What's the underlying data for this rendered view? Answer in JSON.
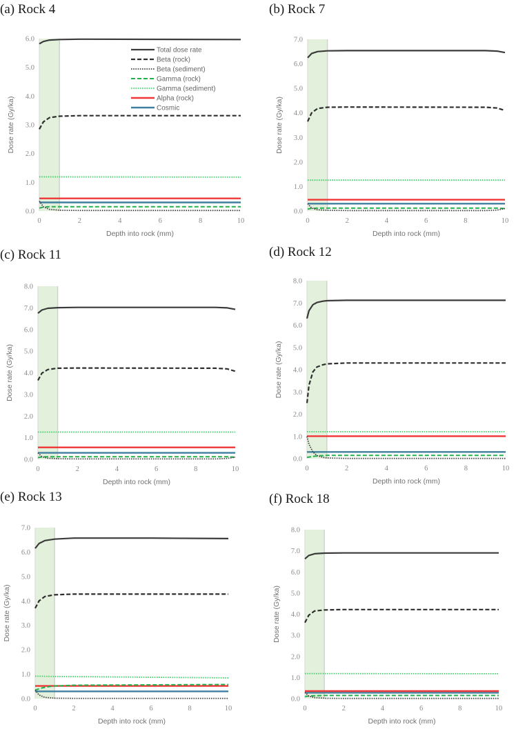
{
  "figure": {
    "legend": {
      "placement": "top-right of panel (a)",
      "entries": [
        {
          "key": "total",
          "label": "Total dose rate"
        },
        {
          "key": "beta_rock",
          "label": "Beta (rock)"
        },
        {
          "key": "beta_sed",
          "label": "Beta (sediment)"
        },
        {
          "key": "gamma_rock",
          "label": "Gamma (rock)"
        },
        {
          "key": "gamma_sed",
          "label": "Gamma (sediment)"
        },
        {
          "key": "alpha_rock",
          "label": "Alpha (rock)"
        },
        {
          "key": "cosmic",
          "label": "Cosmic"
        }
      ]
    },
    "series_styles": {
      "total": {
        "color": "#3a3a3a",
        "dash": "solid"
      },
      "beta_rock": {
        "color": "#2e2e2e",
        "dash": "dashed"
      },
      "beta_sed": {
        "color": "#444444",
        "dash": "dotted"
      },
      "gamma_rock": {
        "color": "#22b04b",
        "dash": "dashed"
      },
      "gamma_sed": {
        "color": "#3fcf6a",
        "dash": "dotted"
      },
      "alpha_rock": {
        "color": "#ef3535",
        "dash": "solid"
      },
      "cosmic": {
        "color": "#3f7f9f",
        "dash": "solid"
      }
    },
    "shaded_region": {
      "x_from": 0,
      "x_to": 1,
      "color": "#e3f1dc"
    }
  },
  "chart_data": [
    {
      "type": "line",
      "title": "(a) Rock 4",
      "xlabel": "Depth into rock (mm)",
      "ylabel": "Dose rate (Gy/ka)",
      "xlim": [
        0,
        10
      ],
      "ylim": [
        0,
        6
      ],
      "xticks": [
        "0",
        "2",
        "4",
        "6",
        "8",
        "10"
      ],
      "yticks": [
        "0.0",
        "1.0",
        "2.0",
        "3.0",
        "4.0",
        "5.0",
        "6.0"
      ],
      "show_legend": true,
      "series": [
        {
          "key": "total",
          "x": [
            0,
            0.2,
            0.5,
            1,
            2,
            10
          ],
          "y": [
            5.82,
            5.9,
            5.95,
            5.97,
            5.98,
            5.97
          ]
        },
        {
          "key": "beta_rock",
          "x": [
            0,
            0.2,
            0.5,
            1,
            2,
            10
          ],
          "y": [
            2.85,
            3.1,
            3.25,
            3.3,
            3.32,
            3.32
          ]
        },
        {
          "key": "beta_sed",
          "x": [
            0,
            0.2,
            0.5,
            1,
            2,
            10
          ],
          "y": [
            0.35,
            0.15,
            0.06,
            0.03,
            0.02,
            0.02
          ]
        },
        {
          "key": "gamma_rock",
          "x": [
            0,
            0.2,
            0.5,
            1,
            10
          ],
          "y": [
            0.1,
            0.14,
            0.15,
            0.15,
            0.15
          ]
        },
        {
          "key": "gamma_sed",
          "x": [
            0,
            10
          ],
          "y": [
            1.19,
            1.18
          ]
        },
        {
          "key": "alpha_rock",
          "x": [
            0,
            10
          ],
          "y": [
            0.44,
            0.44
          ]
        },
        {
          "key": "cosmic",
          "x": [
            0,
            10
          ],
          "y": [
            0.3,
            0.3
          ]
        }
      ]
    },
    {
      "type": "line",
      "title": "(b) Rock 7",
      "xlabel": "Depth into rock (mm)",
      "ylabel": "Dose rate (Gy/ka)",
      "xlim": [
        0,
        10
      ],
      "ylim": [
        0,
        7
      ],
      "xticks": [
        "0",
        "2",
        "4",
        "6",
        "8",
        "10"
      ],
      "yticks": [
        "0.0",
        "1.0",
        "2.0",
        "3.0",
        "4.0",
        "5.0",
        "6.0",
        "7.0"
      ],
      "show_legend": false,
      "series": [
        {
          "key": "total",
          "x": [
            0,
            0.2,
            0.5,
            1,
            2,
            9,
            9.6,
            10
          ],
          "y": [
            6.25,
            6.42,
            6.5,
            6.53,
            6.54,
            6.54,
            6.52,
            6.46
          ]
        },
        {
          "key": "beta_rock",
          "x": [
            0,
            0.2,
            0.5,
            1,
            2,
            9,
            9.6,
            10
          ],
          "y": [
            3.65,
            4.0,
            4.18,
            4.23,
            4.24,
            4.23,
            4.2,
            4.1
          ]
        },
        {
          "key": "beta_sed",
          "x": [
            0,
            0.2,
            0.5,
            1,
            2,
            9,
            9.6,
            10
          ],
          "y": [
            0.3,
            0.12,
            0.05,
            0.03,
            0.02,
            0.02,
            0.04,
            0.1
          ]
        },
        {
          "key": "gamma_rock",
          "x": [
            0,
            0.2,
            0.5,
            1,
            9.6,
            10
          ],
          "y": [
            0.08,
            0.11,
            0.12,
            0.12,
            0.12,
            0.1
          ]
        },
        {
          "key": "gamma_sed",
          "x": [
            0,
            10
          ],
          "y": [
            1.26,
            1.26
          ]
        },
        {
          "key": "alpha_rock",
          "x": [
            0,
            10
          ],
          "y": [
            0.46,
            0.46
          ]
        },
        {
          "key": "cosmic",
          "x": [
            0,
            10
          ],
          "y": [
            0.3,
            0.3
          ]
        }
      ]
    },
    {
      "type": "line",
      "title": "(c) Rock 11",
      "xlabel": "Depth into rock (mm)",
      "ylabel": "Dose rate (Gy/ka)",
      "xlim": [
        0,
        10
      ],
      "ylim": [
        0,
        8
      ],
      "xticks": [
        "0",
        "2",
        "4",
        "6",
        "8",
        "10"
      ],
      "yticks": [
        "0.0",
        "1.0",
        "2.0",
        "3.0",
        "4.0",
        "5.0",
        "6.0",
        "7.0",
        "8.0"
      ],
      "show_legend": false,
      "series": [
        {
          "key": "total",
          "x": [
            0,
            0.2,
            0.5,
            1,
            2,
            9,
            9.6,
            10
          ],
          "y": [
            6.75,
            6.9,
            6.98,
            7.01,
            7.02,
            7.02,
            7.0,
            6.93
          ]
        },
        {
          "key": "beta_rock",
          "x": [
            0,
            0.2,
            0.5,
            1,
            2,
            9,
            9.6,
            10
          ],
          "y": [
            3.65,
            3.98,
            4.15,
            4.21,
            4.22,
            4.21,
            4.18,
            4.07
          ]
        },
        {
          "key": "beta_sed",
          "x": [
            0,
            0.2,
            0.5,
            1,
            2,
            9,
            9.6,
            10
          ],
          "y": [
            0.3,
            0.12,
            0.05,
            0.03,
            0.02,
            0.02,
            0.04,
            0.1
          ]
        },
        {
          "key": "gamma_rock",
          "x": [
            0,
            0.2,
            0.5,
            1,
            9.6,
            10
          ],
          "y": [
            0.08,
            0.11,
            0.12,
            0.12,
            0.12,
            0.1
          ]
        },
        {
          "key": "gamma_sed",
          "x": [
            0,
            10
          ],
          "y": [
            1.26,
            1.26
          ]
        },
        {
          "key": "alpha_rock",
          "x": [
            0,
            10
          ],
          "y": [
            0.55,
            0.55
          ]
        },
        {
          "key": "cosmic",
          "x": [
            0,
            10
          ],
          "y": [
            0.3,
            0.3
          ]
        }
      ]
    },
    {
      "type": "line",
      "title": "(d) Rock 12",
      "xlabel": "Depth into rock (mm)",
      "ylabel": "Dose rate (Gy/ka)",
      "xlim": [
        0,
        10
      ],
      "ylim": [
        0,
        8
      ],
      "xticks": [
        "0",
        "2",
        "4",
        "6",
        "8",
        "10"
      ],
      "yticks": [
        "0.0",
        "1.0",
        "2.0",
        "3.0",
        "4.0",
        "5.0",
        "6.0",
        "7.0",
        "8.0"
      ],
      "show_legend": false,
      "series": [
        {
          "key": "total",
          "x": [
            0,
            0.1,
            0.3,
            0.5,
            0.8,
            1,
            2,
            10
          ],
          "y": [
            6.3,
            6.65,
            6.92,
            7.02,
            7.08,
            7.1,
            7.12,
            7.12
          ]
        },
        {
          "key": "beta_rock",
          "x": [
            0,
            0.1,
            0.3,
            0.5,
            0.8,
            1,
            2,
            10
          ],
          "y": [
            2.5,
            3.3,
            3.9,
            4.12,
            4.22,
            4.26,
            4.3,
            4.3
          ]
        },
        {
          "key": "beta_sed",
          "x": [
            0,
            0.1,
            0.3,
            0.5,
            0.8,
            1,
            2,
            10
          ],
          "y": [
            1.0,
            0.65,
            0.3,
            0.14,
            0.06,
            0.03,
            0.01,
            0.01
          ]
        },
        {
          "key": "gamma_rock",
          "x": [
            0,
            0.3,
            0.6,
            1,
            10
          ],
          "y": [
            0.06,
            0.1,
            0.13,
            0.15,
            0.15
          ]
        },
        {
          "key": "gamma_sed",
          "x": [
            0,
            10
          ],
          "y": [
            1.21,
            1.21
          ]
        },
        {
          "key": "alpha_rock",
          "x": [
            0,
            10
          ],
          "y": [
            1.01,
            1.01
          ]
        },
        {
          "key": "cosmic",
          "x": [
            0,
            10
          ],
          "y": [
            0.3,
            0.3
          ]
        }
      ]
    },
    {
      "type": "line",
      "title": "(e) Rock 13",
      "xlabel": "Depth into rock (mm)",
      "ylabel": "Dose rate (Gy/ka)",
      "xlim": [
        0,
        10
      ],
      "ylim": [
        0,
        7
      ],
      "xticks": [
        "0",
        "2",
        "4",
        "6",
        "8",
        "10"
      ],
      "yticks": [
        "0.0",
        "1.0",
        "2.0",
        "3.0",
        "4.0",
        "5.0",
        "6.0",
        "7.0"
      ],
      "show_legend": false,
      "series": [
        {
          "key": "total",
          "x": [
            0,
            0.2,
            0.5,
            1,
            2,
            6,
            10
          ],
          "y": [
            6.15,
            6.35,
            6.47,
            6.53,
            6.57,
            6.57,
            6.55
          ]
        },
        {
          "key": "beta_rock",
          "x": [
            0,
            0.2,
            0.5,
            1,
            2,
            10
          ],
          "y": [
            3.7,
            4.0,
            4.18,
            4.25,
            4.28,
            4.28
          ]
        },
        {
          "key": "beta_sed",
          "x": [
            0,
            0.2,
            0.5,
            1,
            2,
            10
          ],
          "y": [
            0.35,
            0.15,
            0.05,
            0.02,
            0.01,
            0.01
          ]
        },
        {
          "key": "gamma_rock",
          "x": [
            0,
            0.3,
            0.6,
            1,
            2,
            10
          ],
          "y": [
            0.35,
            0.43,
            0.48,
            0.52,
            0.55,
            0.58
          ]
        },
        {
          "key": "gamma_sed",
          "x": [
            0,
            1,
            10
          ],
          "y": [
            0.92,
            0.91,
            0.85
          ]
        },
        {
          "key": "alpha_rock",
          "x": [
            0,
            10
          ],
          "y": [
            0.52,
            0.52
          ]
        },
        {
          "key": "cosmic",
          "x": [
            0,
            10
          ],
          "y": [
            0.3,
            0.3
          ]
        }
      ]
    },
    {
      "type": "line",
      "title": "(f) Rock 18",
      "xlabel": "Depth into rock (mm)",
      "ylabel": "Dose rate (Gy/ka)",
      "xlim": [
        0,
        10
      ],
      "ylim": [
        0,
        8
      ],
      "xticks": [
        "0",
        "2",
        "4",
        "6",
        "8",
        "10"
      ],
      "yticks": [
        "0.0",
        "1.0",
        "2.0",
        "3.0",
        "4.0",
        "5.0",
        "6.0",
        "7.0",
        "8.0"
      ],
      "show_legend": false,
      "series": [
        {
          "key": "total",
          "x": [
            0,
            0.2,
            0.5,
            1,
            2,
            10
          ],
          "y": [
            6.62,
            6.78,
            6.86,
            6.89,
            6.9,
            6.9
          ]
        },
        {
          "key": "beta_rock",
          "x": [
            0,
            0.2,
            0.5,
            1,
            2,
            10
          ],
          "y": [
            3.6,
            3.95,
            4.15,
            4.2,
            4.22,
            4.22
          ]
        },
        {
          "key": "beta_sed",
          "x": [
            0,
            0.2,
            0.5,
            1,
            2,
            10
          ],
          "y": [
            0.3,
            0.12,
            0.05,
            0.02,
            0.01,
            0.01
          ]
        },
        {
          "key": "gamma_rock",
          "x": [
            0,
            0.3,
            1,
            10
          ],
          "y": [
            0.1,
            0.13,
            0.15,
            0.15
          ]
        },
        {
          "key": "gamma_sed",
          "x": [
            0,
            10
          ],
          "y": [
            1.19,
            1.18
          ]
        },
        {
          "key": "alpha_rock",
          "x": [
            0,
            10
          ],
          "y": [
            0.36,
            0.36
          ]
        },
        {
          "key": "cosmic",
          "x": [
            0,
            10
          ],
          "y": [
            0.28,
            0.28
          ]
        }
      ]
    }
  ]
}
